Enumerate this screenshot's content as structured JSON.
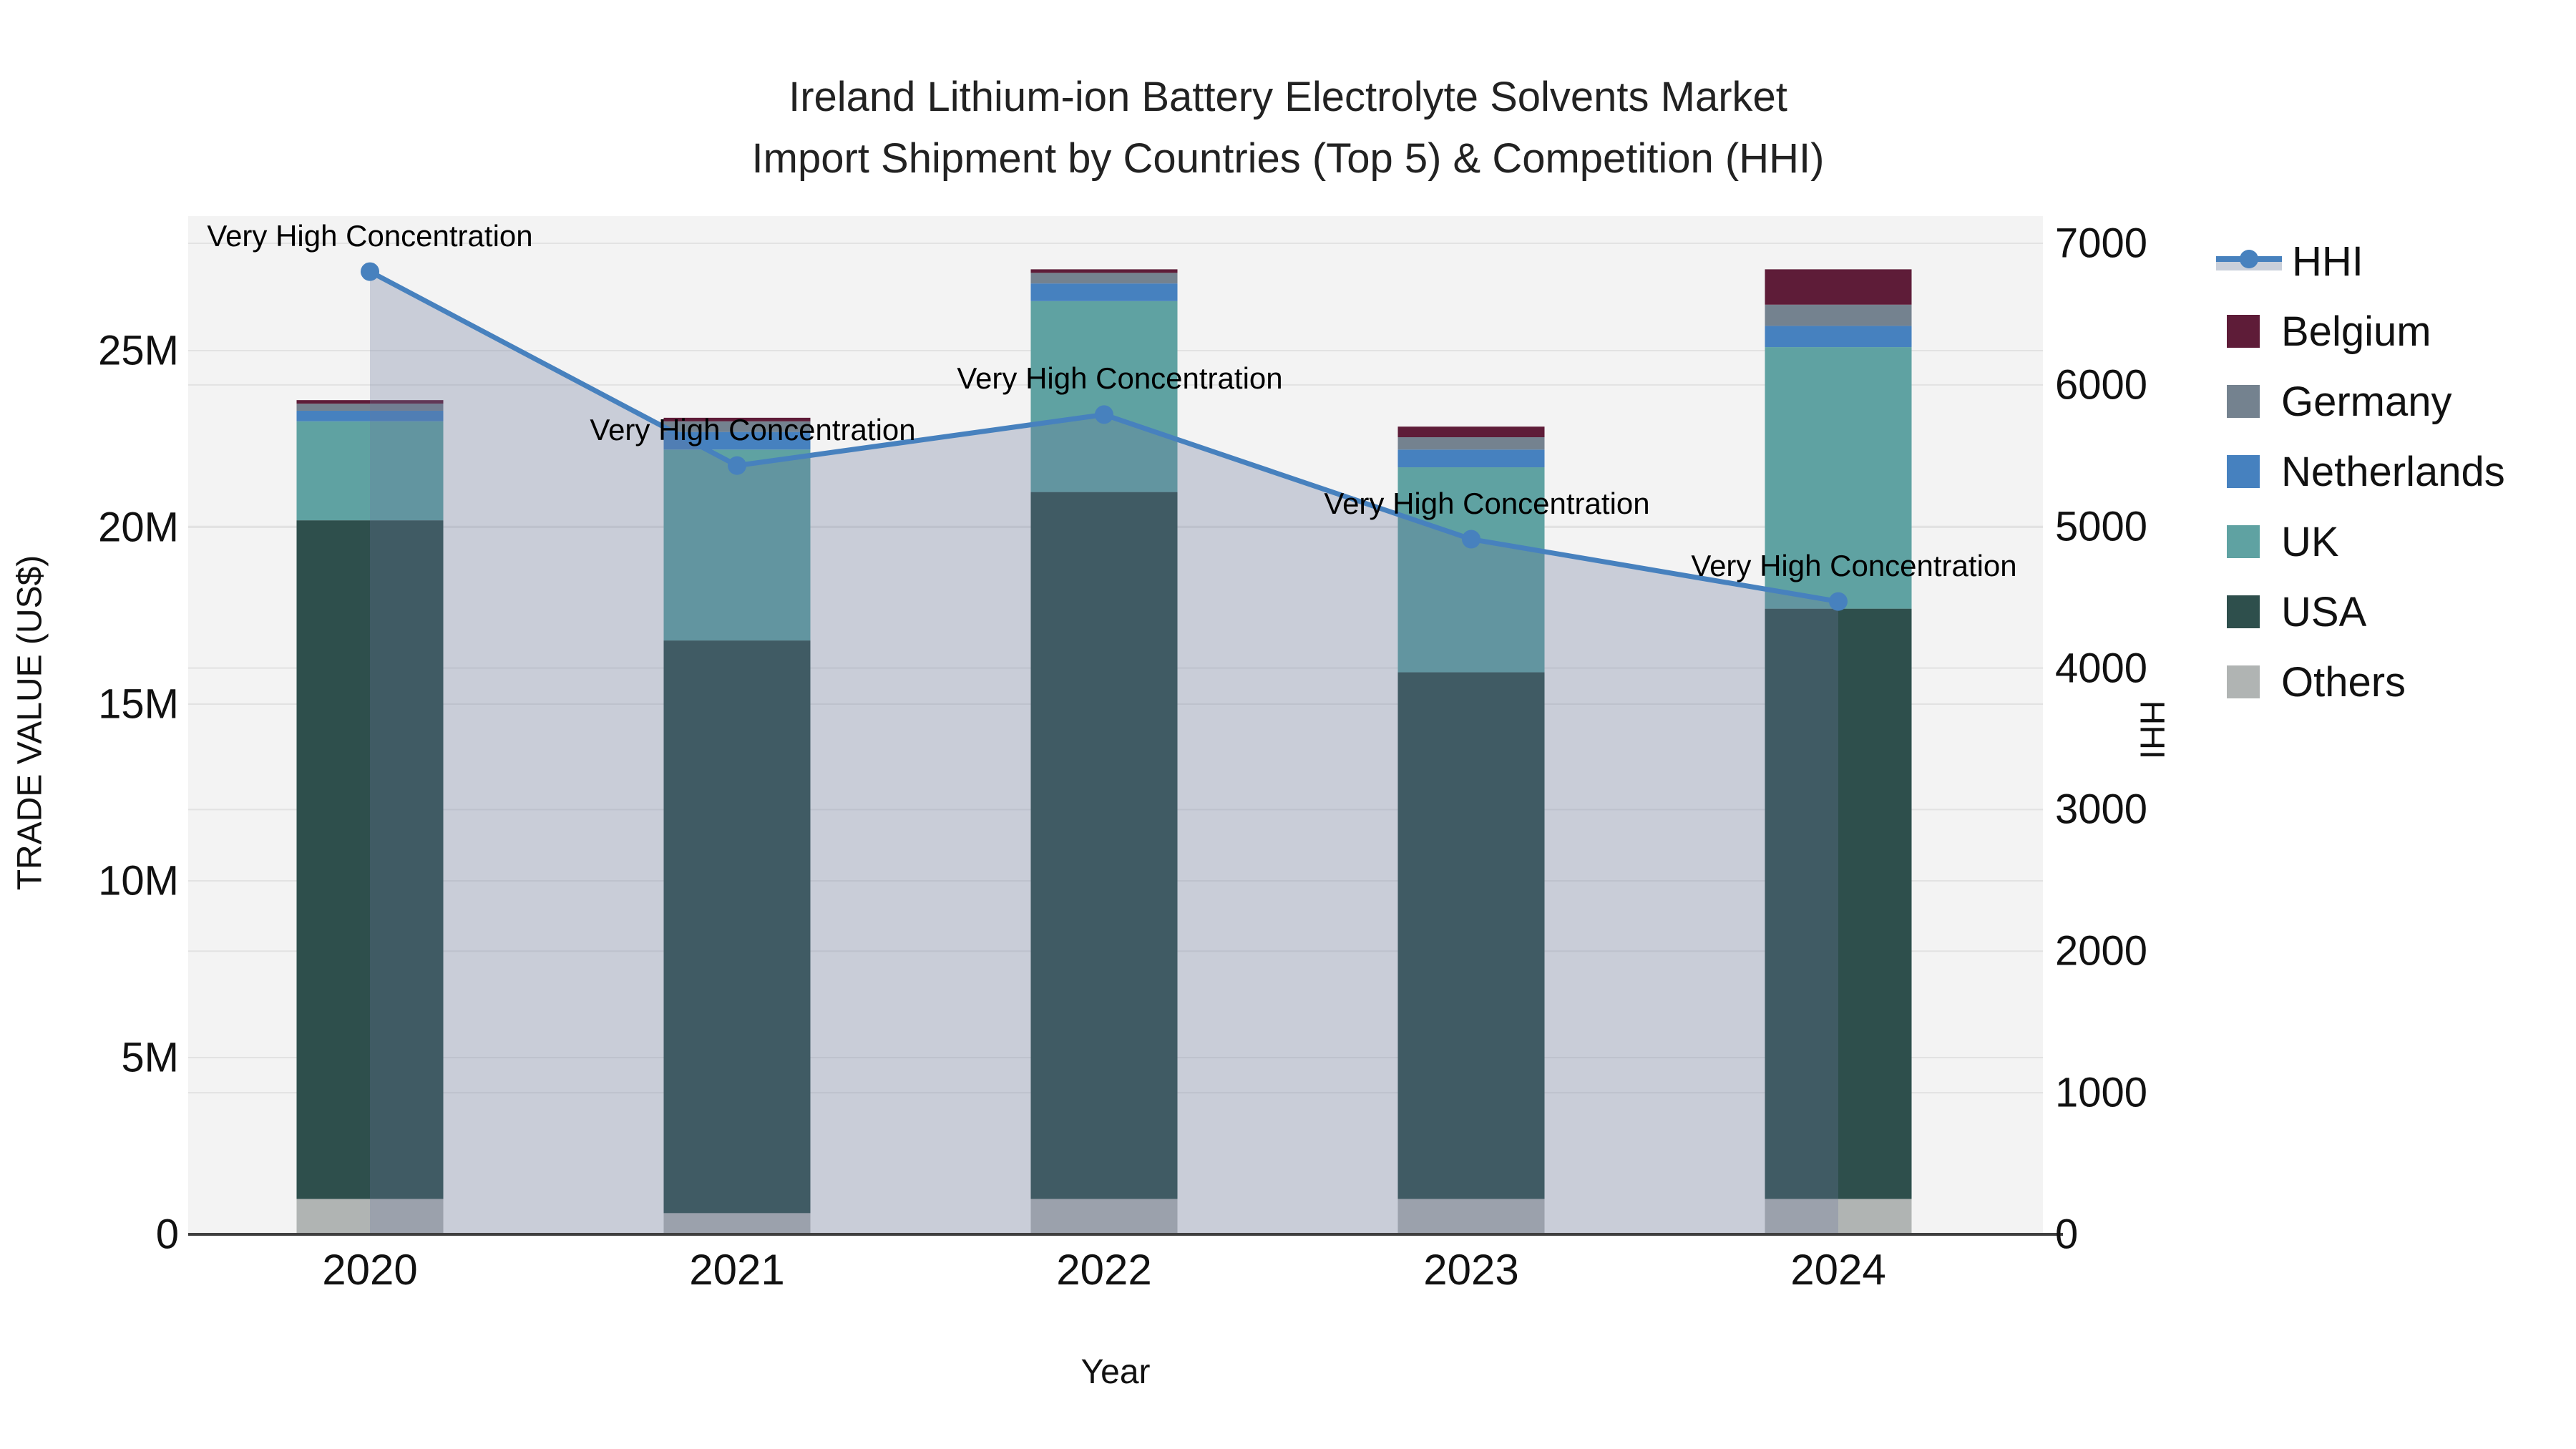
{
  "title": {
    "line1": "Ireland Lithium-ion Battery Electrolyte Solvents Market",
    "line2": "Import Shipment by Countries (Top 5) & Competition (HHI)"
  },
  "axes": {
    "y_left_title": "TRADE VALUE (US$)",
    "y_right_title": "HHI",
    "x_title": "Year",
    "y_left_ticks": [
      {
        "v": 0,
        "label": "0"
      },
      {
        "v": 5,
        "label": "5M"
      },
      {
        "v": 10,
        "label": "10M"
      },
      {
        "v": 15,
        "label": "15M"
      },
      {
        "v": 20,
        "label": "20M"
      },
      {
        "v": 25,
        "label": "25M"
      }
    ],
    "y_right_ticks": [
      {
        "v": 0,
        "label": "0"
      },
      {
        "v": 1000,
        "label": "1000"
      },
      {
        "v": 2000,
        "label": "2000"
      },
      {
        "v": 3000,
        "label": "3000"
      },
      {
        "v": 4000,
        "label": "4000"
      },
      {
        "v": 5000,
        "label": "5000"
      },
      {
        "v": 6000,
        "label": "6000"
      },
      {
        "v": 7000,
        "label": "7000"
      }
    ]
  },
  "colors": {
    "belgium": "#5e1c38",
    "germany": "#74828f",
    "netherlands": "#4681bf",
    "uk": "#5fa2a2",
    "usa": "#2e4f4c",
    "others": "#b0b4b3",
    "hhi_line": "#4781be",
    "hhi_area": "rgba(106,120,155,0.30)",
    "plot_bg": "#f3f3f3",
    "grid": "#e2e2e2",
    "axis_line": "#3f3f3f"
  },
  "legend": {
    "items": [
      {
        "label": "HHI",
        "color_key": "hhi_line",
        "glyph": "line-marker"
      },
      {
        "label": "Belgium",
        "color_key": "belgium",
        "glyph": "square"
      },
      {
        "label": "Germany",
        "color_key": "germany",
        "glyph": "square"
      },
      {
        "label": "Netherlands",
        "color_key": "netherlands",
        "glyph": "square"
      },
      {
        "label": "UK",
        "color_key": "uk",
        "glyph": "square"
      },
      {
        "label": "USA",
        "color_key": "usa",
        "glyph": "square"
      },
      {
        "label": "Others",
        "color_key": "others",
        "glyph": "square"
      }
    ]
  },
  "chart_data": {
    "type": "combo-stacked-bar-line",
    "unit": "million US$",
    "categories": [
      "2020",
      "2021",
      "2022",
      "2023",
      "2024"
    ],
    "series": [
      {
        "name": "Others",
        "color_key": "others",
        "values": [
          1.0,
          0.6,
          1.0,
          1.0,
          1.0
        ]
      },
      {
        "name": "USA",
        "color_key": "usa",
        "values": [
          19.2,
          16.2,
          20.0,
          14.9,
          16.7
        ]
      },
      {
        "name": "UK",
        "color_key": "uk",
        "values": [
          2.8,
          5.4,
          5.4,
          5.8,
          7.4
        ]
      },
      {
        "name": "Netherlands",
        "color_key": "netherlands",
        "values": [
          0.3,
          0.5,
          0.5,
          0.5,
          0.6
        ]
      },
      {
        "name": "Germany",
        "color_key": "germany",
        "values": [
          0.2,
          0.3,
          0.3,
          0.35,
          0.6
        ]
      },
      {
        "name": "Belgium",
        "color_key": "belgium",
        "values": [
          0.1,
          0.1,
          0.1,
          0.3,
          1.0
        ]
      }
    ],
    "bar_totals": [
      23.6,
      23.1,
      27.3,
      22.85,
      27.3
    ],
    "line_series": {
      "name": "HHI",
      "axis": "right",
      "values": [
        6800,
        5430,
        5790,
        4910,
        4470
      ]
    },
    "annotations": [
      {
        "year_index": 0,
        "text": "Very High Concentration"
      },
      {
        "year_index": 1,
        "text": "Very High Concentration"
      },
      {
        "year_index": 2,
        "text": "Very High Concentration"
      },
      {
        "year_index": 3,
        "text": "Very High Concentration"
      },
      {
        "year_index": 4,
        "text": "Very High Concentration"
      }
    ],
    "ylim_left": [
      0,
      28.8
    ],
    "ylim_right": [
      0,
      7200
    ],
    "xlabel": "Year",
    "ylabel_left": "TRADE VALUE (US$)",
    "ylabel_right": "HHI",
    "grid": true,
    "legend_position": "right"
  }
}
